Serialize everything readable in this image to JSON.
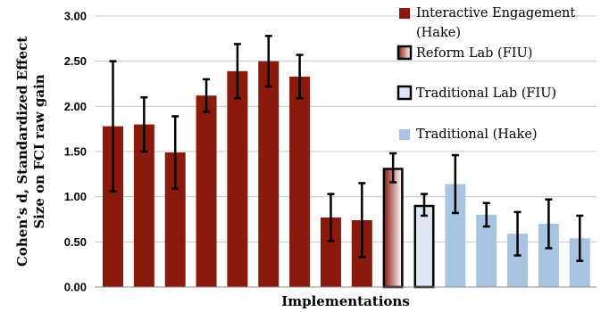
{
  "chart_data": {
    "type": "bar",
    "title": "",
    "xlabel": "Implementations",
    "ylabel_lines": [
      "Cohen's d, Standardized Effect",
      "Size on FCI raw gain"
    ],
    "ylim": [
      0,
      3
    ],
    "yticks": [
      "0.00",
      "0.50",
      "1.00",
      "1.50",
      "2.00",
      "2.50",
      "3.00"
    ],
    "grid": true,
    "legend_placement": "top-right",
    "colors": {
      "interactive": "#8b1a0e",
      "reform_fill_start": "#8b1a0e",
      "reform_fill_end": "#ffffff",
      "traditional_lab_fill": "#dde6f2",
      "traditional_hake": "#a9c4e3",
      "outline": "#000000",
      "grid": "#c8c8c8"
    },
    "series": [
      {
        "name": "Interactive Engagement (Hake)",
        "legend_lines": [
          "Interactive Engagement",
          "(Hake)"
        ],
        "style": "interactive",
        "values": [
          1.78,
          1.8,
          1.49,
          2.12,
          2.39,
          2.5,
          2.33,
          0.77,
          0.74
        ],
        "error": [
          0.72,
          0.3,
          0.4,
          0.18,
          0.3,
          0.28,
          0.24,
          0.26,
          0.41
        ]
      },
      {
        "name": "Reform Lab (FIU)",
        "legend_lines": [
          "Reform Lab (FIU)"
        ],
        "style": "reform",
        "values": [
          1.32
        ],
        "error": [
          0.16
        ]
      },
      {
        "name": "Traditional Lab (FIU)",
        "legend_lines": [
          "Traditional Lab (FIU)"
        ],
        "style": "traditional_lab",
        "values": [
          0.91
        ],
        "error": [
          0.12
        ]
      },
      {
        "name": "Traditional (Hake)",
        "legend_lines": [
          "Traditional (Hake)"
        ],
        "style": "traditional_hake",
        "values": [
          1.14,
          0.8,
          0.59,
          0.7,
          0.54
        ],
        "error": [
          0.32,
          0.13,
          0.24,
          0.27,
          0.25
        ]
      }
    ]
  }
}
